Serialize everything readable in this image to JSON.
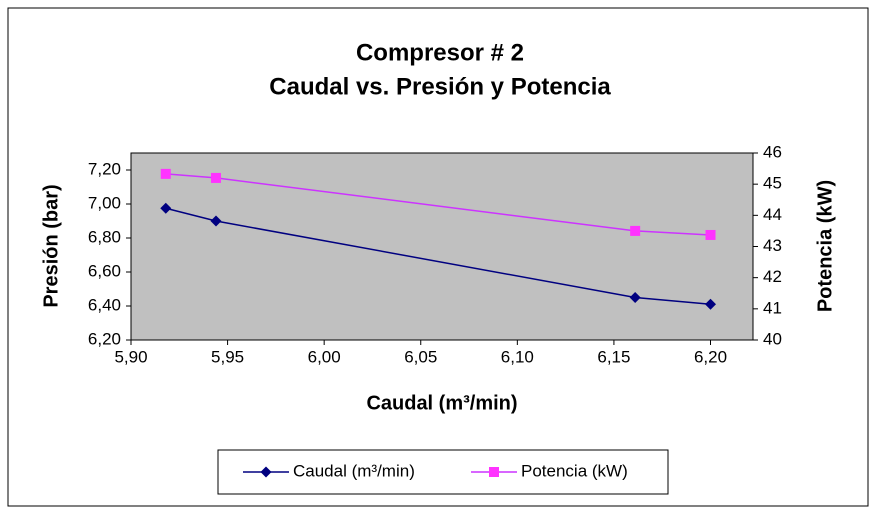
{
  "chart_data": {
    "type": "line",
    "title": [
      "Compresor # 2",
      "Caudal vs. Presión y Potencia"
    ],
    "x_label": "Caudal (m³/min)",
    "y_label": "Presión (bar)",
    "y2_label": "Potencia (kW)",
    "x": [
      5.918,
      5.944,
      6.161,
      6.2
    ],
    "series": [
      {
        "name": "Caudal (m³/min)",
        "color": "#000080",
        "marker": "diamond",
        "values": [
          6.975,
          6.9,
          6.45,
          6.41
        ]
      },
      {
        "name": "Potencia (kW)",
        "color": "#cc33ff",
        "marker": "square",
        "axis": "y2",
        "values": [
          45.33,
          45.2,
          43.5,
          43.37
        ]
      }
    ],
    "xlim": [
      5.9,
      6.222
    ],
    "xticks": [
      {
        "value": 5.9,
        "label": "5,90"
      },
      {
        "value": 5.95,
        "label": "5,95"
      },
      {
        "value": 6.0,
        "label": "6,00"
      },
      {
        "value": 6.05,
        "label": "6,05"
      },
      {
        "value": 6.1,
        "label": "6,10"
      },
      {
        "value": 6.15,
        "label": "6,15"
      },
      {
        "value": 6.2,
        "label": "6,20"
      }
    ],
    "ylim": [
      6.2,
      7.3
    ],
    "yticks": [
      {
        "value": 6.2,
        "label": "6,20"
      },
      {
        "value": 6.4,
        "label": "6,40"
      },
      {
        "value": 6.6,
        "label": "6,60"
      },
      {
        "value": 6.8,
        "label": "6,80"
      },
      {
        "value": 7.0,
        "label": "7,00"
      },
      {
        "value": 7.2,
        "label": "7,20"
      }
    ],
    "y2lim": [
      40,
      46
    ],
    "y2ticks": [
      40,
      41,
      42,
      43,
      44,
      45,
      46
    ],
    "grid": false,
    "legend": "bottom"
  }
}
